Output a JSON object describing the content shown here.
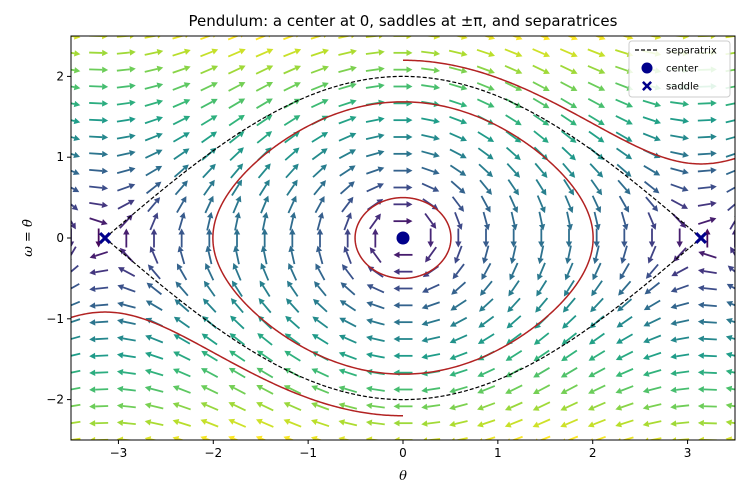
{
  "chart_data": {
    "type": "line",
    "title": "Pendulum: a center at 0, saddles at ±π, and separatrices",
    "xlabel": "θ",
    "ylabel": "ω = θ̇",
    "xlim": [
      -3.5,
      3.5
    ],
    "ylim": [
      -2.5,
      2.5
    ],
    "x_ticks": [
      -3,
      -2,
      -1,
      0,
      1,
      2,
      3
    ],
    "x_tick_labels": [
      "−3",
      "−2",
      "−1",
      "0",
      "1",
      "2",
      "3"
    ],
    "y_ticks": [
      -2,
      -1,
      0,
      1,
      2
    ],
    "y_tick_labels": [
      "−2",
      "−1",
      "0",
      "1",
      "2"
    ],
    "grid": false,
    "legend_position": "top-right",
    "legend": [
      {
        "label": "separatrix",
        "style": "dashed-line",
        "color": "#000000"
      },
      {
        "label": "center",
        "style": "circle-marker",
        "color": "#00008b"
      },
      {
        "label": "saddle",
        "style": "x-marker",
        "color": "#00008b"
      }
    ],
    "vector_field": {
      "equation": "theta' = omega, omega' = -sin(theta)",
      "theta_range": [
        -3.5,
        3.5
      ],
      "omega_range": [
        -2.5,
        2.5
      ],
      "grid_n": 25,
      "colormap": "viridis"
    },
    "trajectories": [
      {
        "kind": "closed-orbit",
        "energy": 0.125,
        "color": "#b22222"
      },
      {
        "kind": "closed-orbit",
        "energy": 1.42,
        "color": "#b22222"
      },
      {
        "kind": "rotation-upper",
        "theta_start": 0.0,
        "theta_end": 3.5,
        "omega_at_start": 2.2,
        "color": "#b22222"
      },
      {
        "kind": "rotation-lower",
        "theta_start": -3.5,
        "theta_end": 0.0,
        "omega_at_end": -2.2,
        "color": "#b22222"
      }
    ],
    "separatrix": {
      "energy": 2.0,
      "theta_range": [
        -3.14159,
        3.14159
      ],
      "color": "#000000"
    },
    "centers": [
      {
        "theta": 0,
        "omega": 0
      }
    ],
    "saddles": [
      {
        "theta": -3.14159,
        "omega": 0
      },
      {
        "theta": 3.14159,
        "omega": 0
      }
    ]
  }
}
